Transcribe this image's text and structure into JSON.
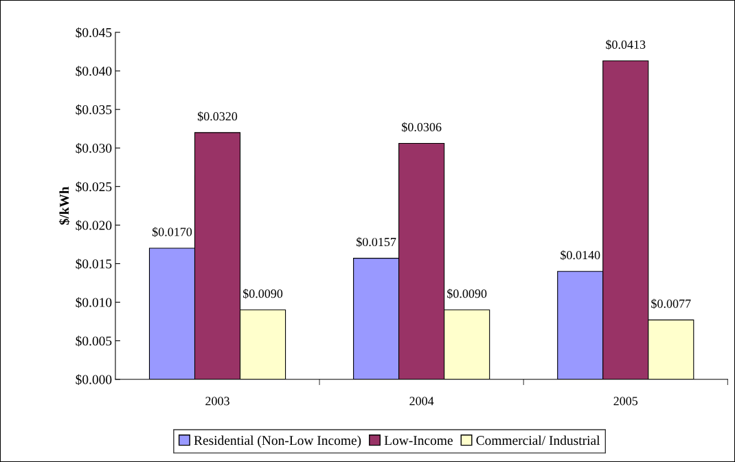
{
  "chart_data": {
    "type": "bar",
    "ylabel": "$/kWh",
    "categories": [
      "2003",
      "2004",
      "2005"
    ],
    "series": [
      {
        "name": "Residential (Non-Low Income)",
        "color": "#9999ff",
        "values": [
          0.017,
          0.0157,
          0.014
        ],
        "value_labels": [
          "$0.0170",
          "$0.0157",
          "$0.0140"
        ]
      },
      {
        "name": "Low-Income",
        "color": "#993366",
        "values": [
          0.032,
          0.0306,
          0.0413
        ],
        "value_labels": [
          "$0.0320",
          "$0.0306",
          "$0.0413"
        ]
      },
      {
        "name": "Commercial/ Industrial",
        "color": "#ffffcc",
        "values": [
          0.009,
          0.009,
          0.0077
        ],
        "value_labels": [
          "$0.0090",
          "$0.0090",
          "$0.0077"
        ]
      }
    ],
    "ylim": [
      0,
      0.045
    ],
    "yticks": [
      {
        "value": 0,
        "label": "$0.000"
      },
      {
        "value": 0.005,
        "label": "$0.005"
      },
      {
        "value": 0.01,
        "label": "$0.010"
      },
      {
        "value": 0.015,
        "label": "$0.015"
      },
      {
        "value": 0.02,
        "label": "$0.020"
      },
      {
        "value": 0.025,
        "label": "$0.025"
      },
      {
        "value": 0.03,
        "label": "$0.030"
      },
      {
        "value": 0.035,
        "label": "$0.035"
      },
      {
        "value": 0.04,
        "label": "$0.040"
      },
      {
        "value": 0.045,
        "label": "$0.045"
      }
    ],
    "grid": false,
    "legend": "bottom"
  }
}
